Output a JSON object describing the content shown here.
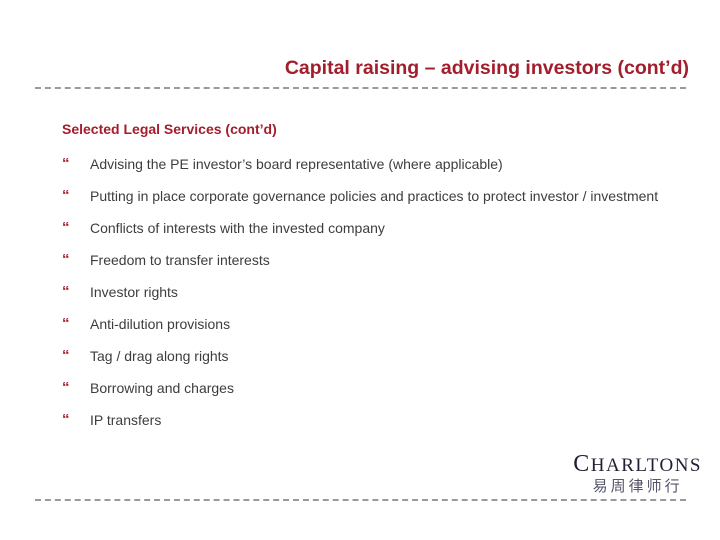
{
  "slide": {
    "title": "Capital raising – advising investors (cont’d)",
    "subheading": "Selected Legal Services (cont’d)",
    "bullet_glyph": "“",
    "bullets": [
      "Advising the PE investor’s board representative (where applicable)",
      "Putting in place corporate governance policies and practices to protect investor / investment",
      "Conflicts of interests with the invested company",
      "Freedom to transfer interests",
      "Investor rights",
      "Anti-dilution provisions",
      "Tag / drag along rights",
      "Borrowing and charges",
      "IP transfers"
    ],
    "logo": {
      "name": "CHARLTONS",
      "chinese": "易周律师行"
    },
    "colors": {
      "accent_red": "#A21E2D",
      "body_text": "#3D3D3D",
      "divider_gray": "#9A9A9A",
      "logo_text": "#1F2033",
      "logo_chinese": "#54546A"
    }
  }
}
